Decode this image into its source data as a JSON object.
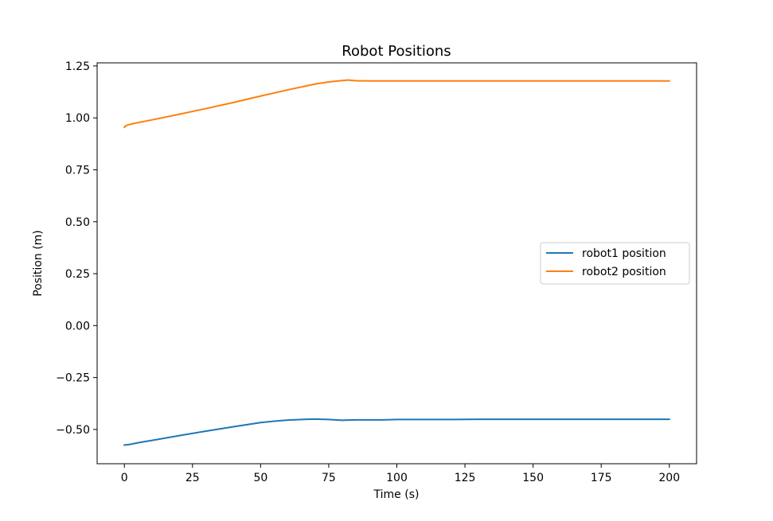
{
  "chart_data": {
    "type": "line",
    "title": "Robot Positions",
    "xlabel": "Time (s)",
    "ylabel": "Position (m)",
    "xlim": [
      -10,
      210
    ],
    "ylim": [
      -0.665,
      1.265
    ],
    "xticks": [
      0,
      25,
      50,
      75,
      100,
      125,
      150,
      175,
      200
    ],
    "yticks": [
      -0.5,
      -0.25,
      0.0,
      0.25,
      0.5,
      0.75,
      1.0,
      1.25
    ],
    "ytick_labels": [
      "−0.50",
      "−0.25",
      "0.00",
      "0.25",
      "0.50",
      "0.75",
      "1.00",
      "1.25"
    ],
    "grid": false,
    "legend_position": "center-right",
    "series": [
      {
        "name": "robot1 position",
        "color": "#1f77b4",
        "x": [
          0,
          2,
          5,
          10,
          20,
          30,
          40,
          50,
          55,
          60,
          65,
          70,
          75,
          80,
          82,
          85,
          90,
          95,
          100,
          110,
          120,
          130,
          140,
          150,
          160,
          170,
          180,
          190,
          200
        ],
        "y": [
          -0.575,
          -0.572,
          -0.564,
          -0.553,
          -0.53,
          -0.508,
          -0.487,
          -0.467,
          -0.46,
          -0.455,
          -0.452,
          -0.45,
          -0.452,
          -0.456,
          -0.455,
          -0.454,
          -0.454,
          -0.454,
          -0.452,
          -0.452,
          -0.452,
          -0.451,
          -0.451,
          -0.451,
          -0.451,
          -0.451,
          -0.451,
          -0.451,
          -0.451
        ]
      },
      {
        "name": "robot2 position",
        "color": "#ff7f0e",
        "x": [
          0,
          0.5,
          1.5,
          3,
          10,
          20,
          30,
          40,
          50,
          60,
          70,
          75,
          80,
          82,
          85,
          90,
          100,
          120,
          140,
          160,
          180,
          200
        ],
        "y": [
          0.955,
          0.962,
          0.967,
          0.972,
          0.99,
          1.017,
          1.045,
          1.074,
          1.105,
          1.135,
          1.163,
          1.173,
          1.18,
          1.182,
          1.179,
          1.178,
          1.178,
          1.178,
          1.178,
          1.178,
          1.178,
          1.178
        ]
      }
    ]
  }
}
